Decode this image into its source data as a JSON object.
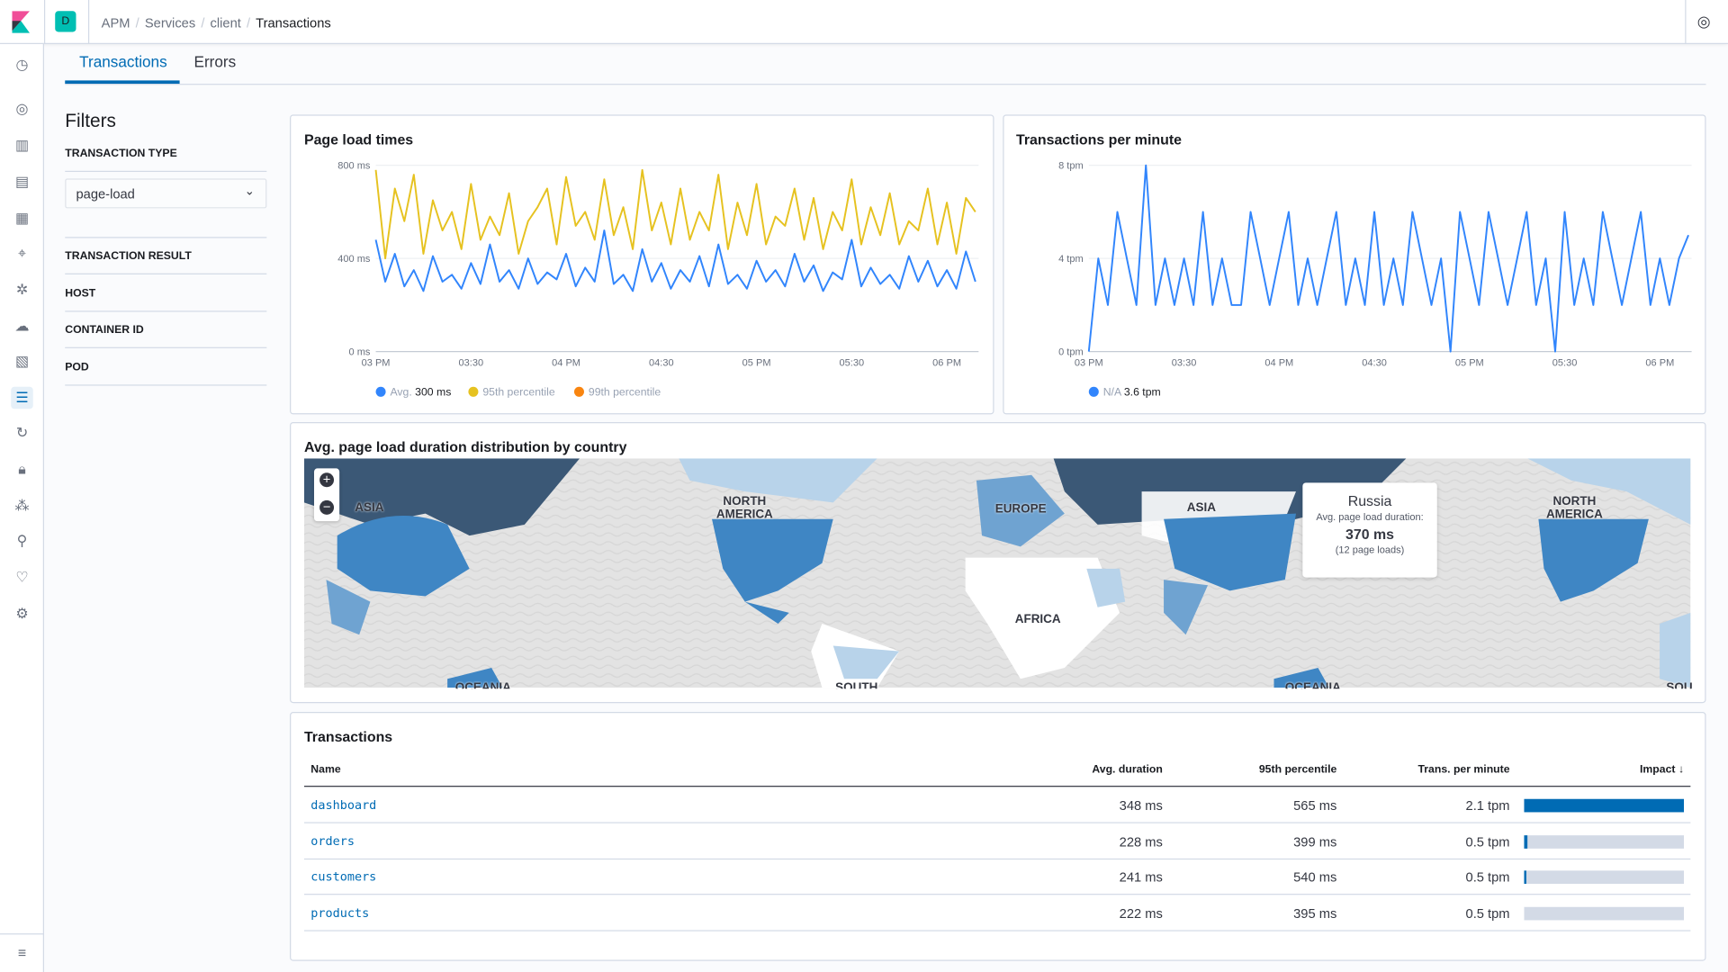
{
  "header": {
    "space_initial": "D",
    "breadcrumbs": [
      "APM",
      "Services",
      "client",
      "Transactions"
    ]
  },
  "tabs": [
    {
      "label": "Transactions",
      "active": true
    },
    {
      "label": "Errors",
      "active": false
    }
  ],
  "filters": {
    "title": "Filters",
    "transaction_type_label": "TRANSACTION TYPE",
    "transaction_type_value": "page-load",
    "sections": [
      "TRANSACTION RESULT",
      "HOST",
      "CONTAINER ID",
      "POD"
    ]
  },
  "colors": {
    "accent": "#006bb4",
    "avg": "#3185fc",
    "p95": "#e6c220",
    "p99": "#f98510",
    "teal": "#00bfb3"
  },
  "chart_data": [
    {
      "type": "line",
      "title": "Page load times",
      "y_ticks": [
        "0 ms",
        "400 ms",
        "800 ms"
      ],
      "ylim": [
        0,
        800
      ],
      "x_ticks": [
        "03 PM",
        "03:30",
        "04 PM",
        "04:30",
        "05 PM",
        "05:30",
        "06 PM"
      ],
      "x_range_minutes_from_3pm": [
        0,
        190
      ],
      "x_step_minutes": 3,
      "series": [
        {
          "name": "Avg.",
          "legend_value": "300 ms",
          "color": "#3185fc",
          "values": [
            480,
            300,
            420,
            280,
            350,
            260,
            410,
            300,
            330,
            270,
            380,
            290,
            460,
            300,
            350,
            270,
            400,
            290,
            340,
            310,
            420,
            280,
            360,
            300,
            520,
            290,
            330,
            260,
            440,
            300,
            380,
            270,
            350,
            300,
            410,
            280,
            460,
            290,
            330,
            270,
            390,
            300,
            350,
            280,
            420,
            300,
            370,
            260,
            340,
            310,
            480,
            280,
            360,
            290,
            330,
            270,
            410,
            300,
            390,
            280,
            350,
            270,
            430,
            300
          ]
        },
        {
          "name": "95th percentile",
          "color": "#e6c220",
          "values": [
            780,
            400,
            700,
            560,
            760,
            420,
            650,
            520,
            600,
            440,
            720,
            480,
            580,
            500,
            680,
            420,
            560,
            620,
            700,
            460,
            750,
            540,
            600,
            480,
            740,
            500,
            620,
            440,
            780,
            520,
            640,
            460,
            700,
            480,
            600,
            520,
            760,
            440,
            640,
            500,
            720,
            460,
            580,
            540,
            700,
            480,
            660,
            440,
            600,
            520,
            740,
            460,
            620,
            500,
            680,
            460,
            560,
            520,
            700,
            460,
            640,
            420,
            660,
            600
          ]
        },
        {
          "name": "99th percentile",
          "color": "#f98510",
          "values": []
        }
      ]
    },
    {
      "type": "line",
      "title": "Transactions per minute",
      "y_ticks": [
        "0 tpm",
        "4 tpm",
        "8 tpm"
      ],
      "ylim": [
        0,
        8
      ],
      "x_ticks": [
        "03 PM",
        "03:30",
        "04 PM",
        "04:30",
        "05 PM",
        "05:30",
        "06 PM"
      ],
      "x_range_minutes_from_3pm": [
        0,
        190
      ],
      "x_step_minutes": 3,
      "series": [
        {
          "name": "N/A",
          "legend_value": "3.6 tpm",
          "color": "#3185fc",
          "values": [
            0,
            4,
            2,
            6,
            4,
            2,
            8,
            2,
            4,
            2,
            4,
            2,
            6,
            2,
            4,
            2,
            2,
            6,
            4,
            2,
            4,
            6,
            2,
            4,
            2,
            4,
            6,
            2,
            4,
            2,
            6,
            2,
            4,
            2,
            6,
            4,
            2,
            4,
            0,
            6,
            4,
            2,
            6,
            4,
            2,
            4,
            6,
            2,
            4,
            0,
            6,
            2,
            4,
            2,
            6,
            4,
            2,
            4,
            6,
            2,
            4,
            2,
            4,
            5
          ]
        }
      ]
    }
  ],
  "map": {
    "title": "Avg. page load duration distribution by country",
    "labels": [
      "ASIA",
      "NORTH\nAMERICA",
      "EUROPE",
      "ASIA",
      "NORTH\nAMERICA",
      "AFRICA",
      "OCEANIA",
      "SOUTH",
      "OCEANIA",
      "SOU"
    ],
    "tooltip": {
      "country": "Russia",
      "label": "Avg. page load duration:",
      "value": "370 ms",
      "count": "(12 page loads)"
    }
  },
  "table": {
    "title": "Transactions",
    "columns": [
      "Name",
      "Avg. duration",
      "95th percentile",
      "Trans. per minute",
      "Impact"
    ],
    "rows": [
      {
        "name": "dashboard",
        "avg": "348 ms",
        "p95": "565 ms",
        "tpm": "2.1 tpm",
        "impact": 100
      },
      {
        "name": "orders",
        "avg": "228 ms",
        "p95": "399 ms",
        "tpm": "0.5 tpm",
        "impact": 2
      },
      {
        "name": "customers",
        "avg": "241 ms",
        "p95": "540 ms",
        "tpm": "0.5 tpm",
        "impact": 1
      },
      {
        "name": "products",
        "avg": "222 ms",
        "p95": "395 ms",
        "tpm": "0.5 tpm",
        "impact": 0
      }
    ]
  }
}
